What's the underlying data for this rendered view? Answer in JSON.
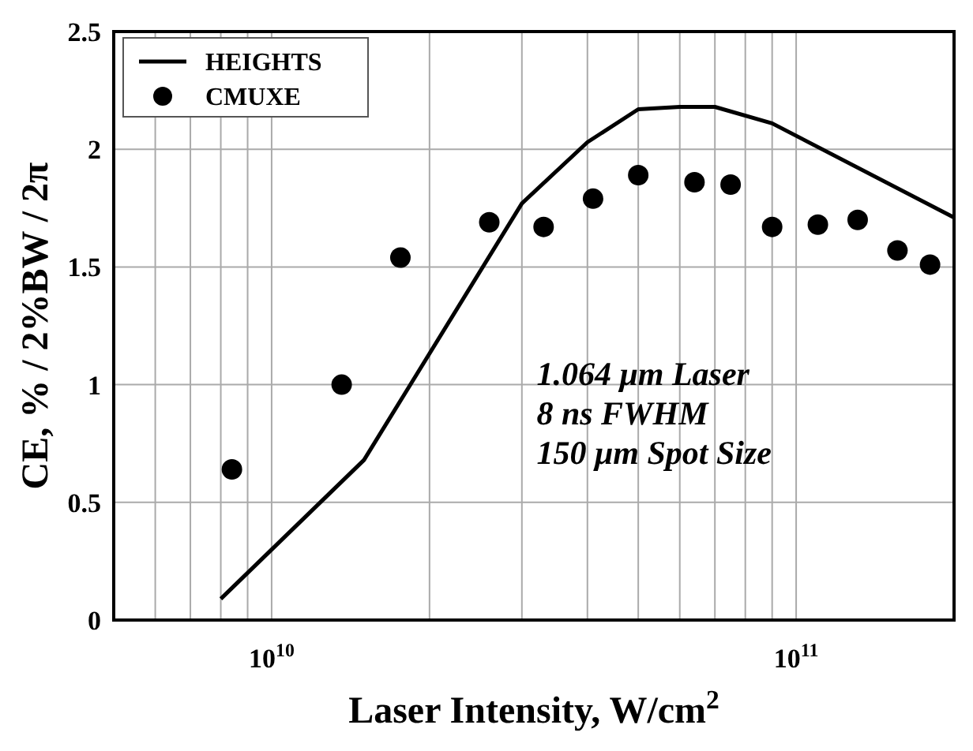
{
  "chart_data": {
    "type": "line",
    "xlabel": "Laser Intensity, W/cm$^{2}$",
    "ylabel": "CE, % / 2%BW / 2π",
    "log": "x",
    "xlim": [
      5000000000.0,
      200000000000.0
    ],
    "ylim": [
      0,
      2.5
    ],
    "xticks": [
      {
        "value": 5000000000.0,
        "label": null
      },
      {
        "value": 6000000000.0,
        "label": null
      },
      {
        "value": 7000000000.0,
        "label": null
      },
      {
        "value": 8000000000.0,
        "label": null
      },
      {
        "value": 9000000000.0,
        "label": null
      },
      {
        "value": 10000000000.0,
        "label": "10$^{10}$"
      },
      {
        "value": 20000000000.0,
        "label": null
      },
      {
        "value": 30000000000.0,
        "label": null
      },
      {
        "value": 40000000000.0,
        "label": null
      },
      {
        "value": 50000000000.0,
        "label": null
      },
      {
        "value": 60000000000.0,
        "label": null
      },
      {
        "value": 70000000000.0,
        "label": null
      },
      {
        "value": 80000000000.0,
        "label": null
      },
      {
        "value": 90000000000.0,
        "label": null
      },
      {
        "value": 100000000000.0,
        "label": "10$^{11}$"
      },
      {
        "value": 200000000000.0,
        "label": null
      }
    ],
    "yticks": [
      0,
      0.5,
      1,
      1.5,
      2,
      2.5
    ],
    "grid": true,
    "legend": "top left",
    "series": [
      {
        "name": "HEIGHTS",
        "color": "#000000",
        "marker": "none",
        "line_style": "solid",
        "x": [
          8000000000.0,
          15000000000.0,
          30000000000.0,
          40000000000.0,
          50000000000.0,
          60000000000.0,
          70000000000.0,
          90000000000.0,
          200000000000.0
        ],
        "values": [
          0.09,
          0.68,
          1.77,
          2.03,
          2.17,
          2.18,
          2.18,
          2.11,
          1.71
        ]
      },
      {
        "name": "CMUXE",
        "type": "scatter",
        "color": "#000000",
        "marker": "circle",
        "x": [
          8400000000.0,
          13600000000.0,
          17600000000.0,
          26000000000.0,
          33000000000.0,
          41000000000.0,
          50000000000.0,
          64000000000.0,
          75000000000.0,
          90000000000.0,
          110000000000.0,
          131000000000.0,
          156000000000.0,
          180000000000.0
        ],
        "values": [
          0.64,
          1.0,
          1.54,
          1.69,
          1.67,
          1.79,
          1.89,
          1.86,
          1.85,
          1.67,
          1.68,
          1.7,
          1.57,
          1.51
        ]
      }
    ],
    "annotations": [
      "1.064 μm Laser",
      "8 ns FWHM",
      "150 μm Spot Size"
    ]
  }
}
